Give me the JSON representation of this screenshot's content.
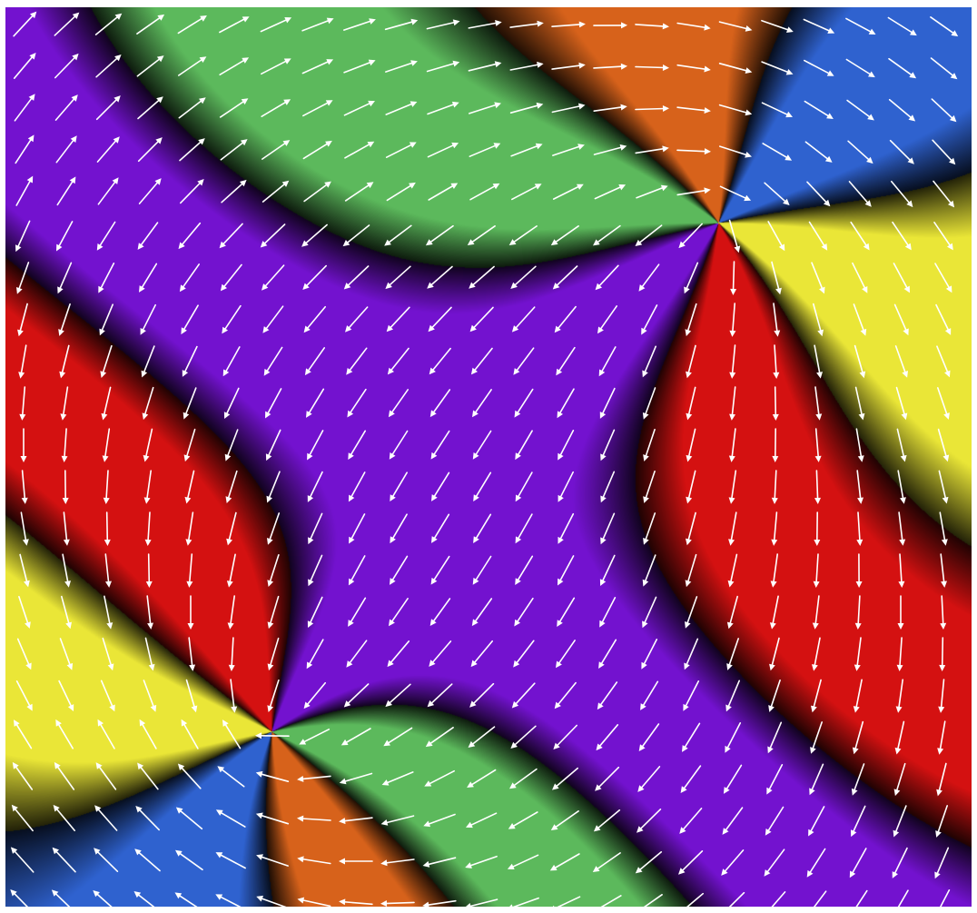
{
  "figure": {
    "kind": "vector-field phase map with two topological defects",
    "palette": {
      "blue": "#2f62cf",
      "yellow": "#eae637",
      "red": "#d41111",
      "purple": "#7312cf",
      "green": "#5cb95c",
      "orange": "#d7621b",
      "background_dark": "#141414",
      "arrow": "#ffffff"
    },
    "icons": [
      "white-arrow-icon"
    ]
  }
}
